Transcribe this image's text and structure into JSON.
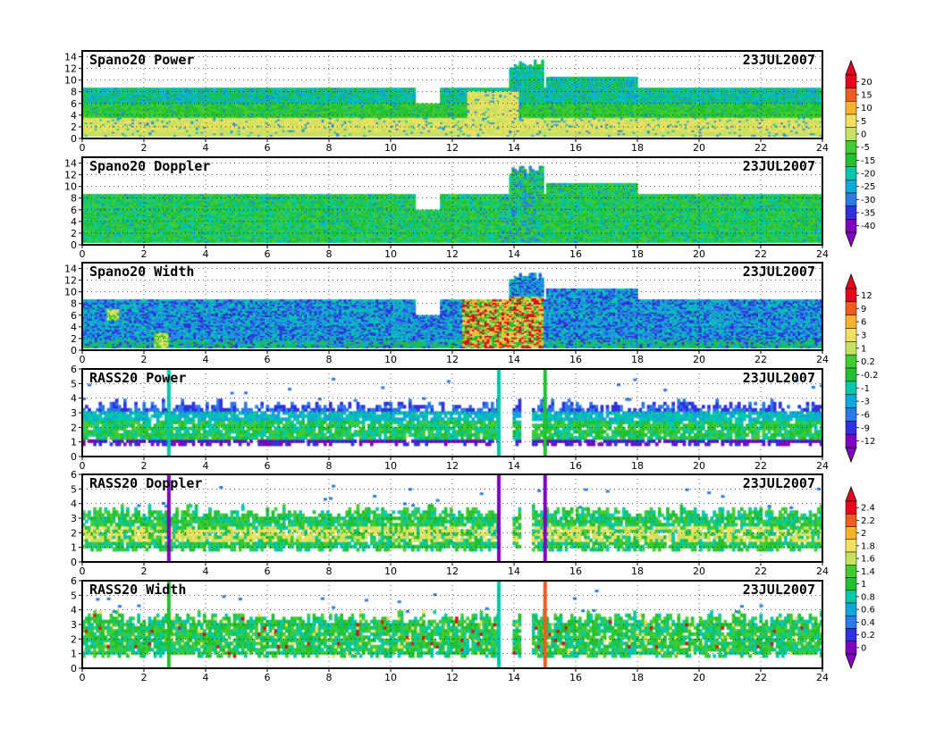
{
  "chart_data": [
    {
      "type": "heatmap",
      "title": "Spano20 Power",
      "date": "23JUL2007",
      "xlim": [
        0,
        24
      ],
      "ylim": [
        0,
        15
      ],
      "xticks": [
        "0",
        "2",
        "4",
        "6",
        "8",
        "10",
        "12",
        "14",
        "16",
        "18",
        "20",
        "22",
        "24"
      ],
      "yticks": [
        "0",
        "2",
        "4",
        "6",
        "8",
        "10",
        "12",
        "14"
      ],
      "grid": true,
      "colorbar": 0
    },
    {
      "type": "heatmap",
      "title": "Spano20 Doppler",
      "date": "23JUL2007",
      "xlim": [
        0,
        24
      ],
      "ylim": [
        0,
        15
      ],
      "xticks": [
        "0",
        "2",
        "4",
        "6",
        "8",
        "10",
        "12",
        "14",
        "16",
        "18",
        "20",
        "22",
        "24"
      ],
      "yticks": [
        "0",
        "2",
        "4",
        "6",
        "8",
        "10",
        "12",
        "14"
      ],
      "grid": true,
      "colorbar": 0
    },
    {
      "type": "heatmap",
      "title": "Spano20 Width",
      "date": "23JUL2007",
      "xlim": [
        0,
        24
      ],
      "ylim": [
        0,
        15
      ],
      "xticks": [
        "0",
        "2",
        "4",
        "6",
        "8",
        "10",
        "12",
        "14",
        "16",
        "18",
        "20",
        "22",
        "24"
      ],
      "yticks": [
        "0",
        "2",
        "4",
        "6",
        "8",
        "10",
        "12",
        "14"
      ],
      "grid": true,
      "colorbar": 1
    },
    {
      "type": "heatmap",
      "title": "RASS20 Power",
      "date": "23JUL2007",
      "xlim": [
        0,
        24
      ],
      "ylim": [
        0,
        6
      ],
      "xticks": [
        "0",
        "2",
        "4",
        "6",
        "8",
        "10",
        "12",
        "14",
        "16",
        "18",
        "20",
        "22",
        "24"
      ],
      "yticks": [
        "0",
        "1",
        "2",
        "3",
        "4",
        "5",
        "6"
      ],
      "grid": true,
      "colorbar": 1
    },
    {
      "type": "heatmap",
      "title": "RASS20 Doppler",
      "date": "23JUL2007",
      "xlim": [
        0,
        24
      ],
      "ylim": [
        0,
        6
      ],
      "xticks": [
        "0",
        "2",
        "4",
        "6",
        "8",
        "10",
        "12",
        "14",
        "16",
        "18",
        "20",
        "22",
        "24"
      ],
      "yticks": [
        "0",
        "1",
        "2",
        "3",
        "4",
        "5",
        "6"
      ],
      "grid": true,
      "colorbar": 2
    },
    {
      "type": "heatmap",
      "title": "RASS20 Width",
      "date": "23JUL2007",
      "xlim": [
        0,
        24
      ],
      "ylim": [
        0,
        6
      ],
      "xticks": [
        "0",
        "2",
        "4",
        "6",
        "8",
        "10",
        "12",
        "14",
        "16",
        "18",
        "20",
        "22",
        "24"
      ],
      "yticks": [
        "0",
        "1",
        "2",
        "3",
        "4",
        "5",
        "6"
      ],
      "grid": true,
      "colorbar": 2
    }
  ],
  "colorbars": [
    {
      "labels": [
        "20",
        "15",
        "10",
        "5",
        "0",
        "-5",
        "-15",
        "-20",
        "-25",
        "-30",
        "-35",
        "-40"
      ],
      "colors": [
        "#e8001c",
        "#f05a1e",
        "#f8b22c",
        "#f0e060",
        "#c8e060",
        "#40cc30",
        "#20c030",
        "#00c8a8",
        "#10a8d8",
        "#2a7ae8",
        "#3030e0",
        "#8000c0"
      ]
    },
    {
      "labels": [
        "12",
        "9",
        "6",
        "3",
        "1",
        "0.2",
        "-0.2",
        "-1",
        "-3",
        "-6",
        "-9",
        "-12"
      ],
      "colors": [
        "#e8001c",
        "#f05a1e",
        "#f8b22c",
        "#f0e060",
        "#c8e060",
        "#40cc30",
        "#20c030",
        "#00c8a8",
        "#10a8d8",
        "#2a7ae8",
        "#3030e0",
        "#8000c0"
      ]
    },
    {
      "labels": [
        "2.4",
        "2.2",
        "2",
        "1.8",
        "1.6",
        "1.4",
        "1",
        "0.8",
        "0.6",
        "0.4",
        "0.2",
        "0"
      ],
      "colors": [
        "#e8001c",
        "#f05a1e",
        "#f8b22c",
        "#f0e060",
        "#c8e060",
        "#40cc30",
        "#20c030",
        "#00c8a8",
        "#10a8d8",
        "#2a7ae8",
        "#3030e0",
        "#8000c0"
      ]
    }
  ]
}
